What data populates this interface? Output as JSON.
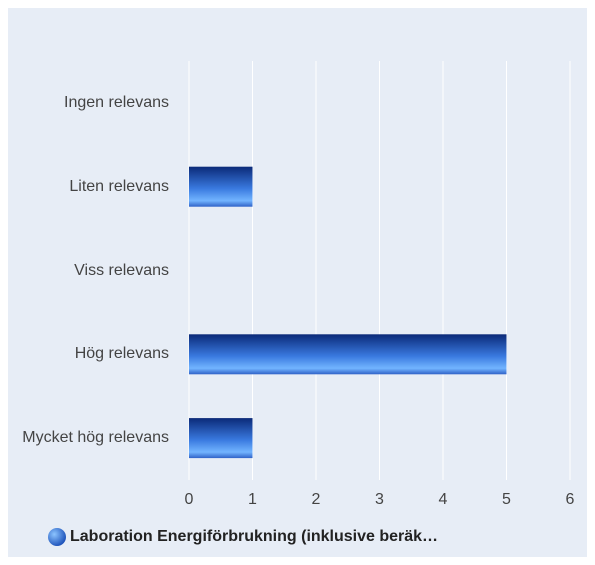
{
  "chart_data": {
    "type": "bar",
    "orientation": "horizontal",
    "categories": [
      "Ingen relevans",
      "Liten relevans",
      "Viss relevans",
      "Hög relevans",
      "Mycket hög relevans"
    ],
    "series": [
      {
        "name": "Laboration Energiförbrukning (inklusive beräk…",
        "color": "#2f6fdc",
        "values": [
          0,
          1,
          0,
          5,
          1
        ]
      }
    ],
    "xlim": [
      0,
      6
    ],
    "xticks": [
      0,
      1,
      2,
      3,
      4,
      5,
      6
    ],
    "grid": true,
    "legend": "bottom"
  }
}
